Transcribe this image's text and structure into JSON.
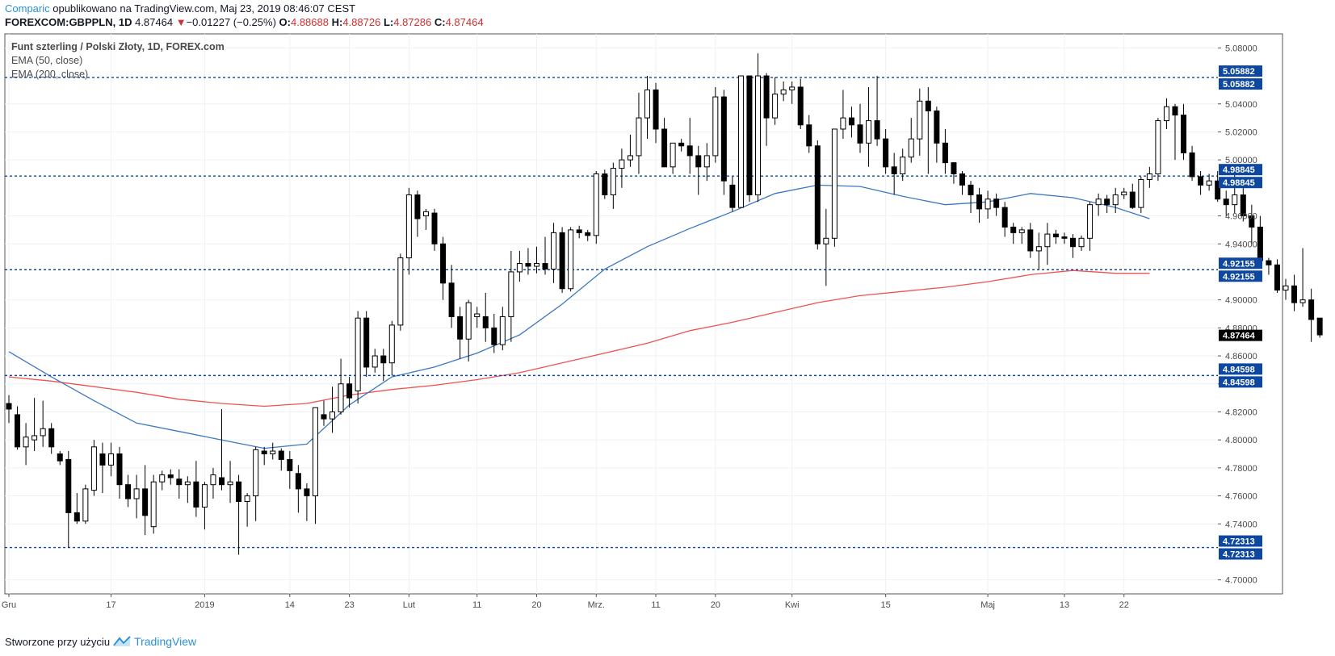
{
  "header": {
    "brand": "Comparic",
    "published": " opublikowano na TradingView.com, Maj 23, 2019 08:46:07 CEST",
    "symbol": "FOREXCOM:GBPPLN, 1D",
    "last": "4.87464",
    "arrow": "▼",
    "change": "−0.01227 (−0.25%)",
    "o_label": "O:",
    "o_value": "4.88688",
    "h_label": "H:",
    "h_value": "4.88726",
    "l_label": "L:",
    "l_value": "4.87286",
    "c_label": "C:",
    "c_value": "4.87464"
  },
  "legend": {
    "title": "Funt szterling / Polski Złoty, 1D, FOREX.com",
    "ema50": "EMA (50, close)",
    "ema200": "EMA (200, close)"
  },
  "footer": {
    "text": "Stworzone przy użyciu",
    "brand": "TradingView"
  },
  "colors": {
    "hline": "#0d47a1",
    "ema50": "#3b78c2",
    "ema200": "#ef5350",
    "bg": "#ffffff"
  },
  "chart_data": {
    "type": "candlestick",
    "title": "Funt szterling / Polski Złoty, 1D, FOREX.com",
    "ylim": [
      4.69,
      5.09
    ],
    "y_ticks": [
      "5.08000",
      "5.04000",
      "5.02000",
      "5.00000",
      "4.96000",
      "4.94000",
      "4.90000",
      "4.88000",
      "4.86000",
      "4.84000",
      "4.82000",
      "4.80000",
      "4.78000",
      "4.76000",
      "4.74000",
      "4.70000"
    ],
    "x_ticks": [
      {
        "label": "Gru",
        "i": 0
      },
      {
        "label": "17",
        "i": 12
      },
      {
        "label": "2019",
        "i": 23
      },
      {
        "label": "14",
        "i": 33
      },
      {
        "label": "23",
        "i": 40
      },
      {
        "label": "Lut",
        "i": 47
      },
      {
        "label": "11",
        "i": 55
      },
      {
        "label": "20",
        "i": 62
      },
      {
        "label": "Mrz.",
        "i": 69
      },
      {
        "label": "11",
        "i": 76
      },
      {
        "label": "20",
        "i": 83
      },
      {
        "label": "Kwi",
        "i": 92
      },
      {
        "label": "15",
        "i": 103
      },
      {
        "label": "Maj",
        "i": 115
      },
      {
        "label": "13",
        "i": 124
      },
      {
        "label": "22",
        "i": 131
      }
    ],
    "horizontal_levels": [
      {
        "label": "5.05882",
        "value": 5.05882
      },
      {
        "label": "4.98845",
        "value": 4.98845
      },
      {
        "label": "4.92155",
        "value": 4.92155
      },
      {
        "label": "4.84598",
        "value": 4.84598
      },
      {
        "label": "4.72313",
        "value": 4.72313
      }
    ],
    "last_price": {
      "label": "4.87464",
      "value": 4.87464
    },
    "candles": [
      [
        4.826,
        4.832,
        4.812,
        4.822
      ],
      [
        4.818,
        4.824,
        4.793,
        4.795
      ],
      [
        4.795,
        4.812,
        4.782,
        4.802
      ],
      [
        4.8,
        4.83,
        4.792,
        4.803
      ],
      [
        4.803,
        4.828,
        4.795,
        4.808
      ],
      [
        4.808,
        4.812,
        4.79,
        4.795
      ],
      [
        4.79,
        4.792,
        4.782,
        4.785
      ],
      [
        4.786,
        4.792,
        4.723,
        4.748
      ],
      [
        4.748,
        4.762,
        4.74,
        4.742
      ],
      [
        4.742,
        4.768,
        4.74,
        4.765
      ],
      [
        4.764,
        4.8,
        4.76,
        4.795
      ],
      [
        4.79,
        4.798,
        4.762,
        4.782
      ],
      [
        4.782,
        4.798,
        4.774,
        4.79
      ],
      [
        4.79,
        4.795,
        4.758,
        4.768
      ],
      [
        4.768,
        4.775,
        4.752,
        4.758
      ],
      [
        4.758,
        4.775,
        4.744,
        4.765
      ],
      [
        4.765,
        4.782,
        4.732,
        4.746
      ],
      [
        4.738,
        4.775,
        4.733,
        4.77
      ],
      [
        4.77,
        4.778,
        4.764,
        4.775
      ],
      [
        4.775,
        4.779,
        4.768,
        4.773
      ],
      [
        4.772,
        4.779,
        4.758,
        4.768
      ],
      [
        4.768,
        4.774,
        4.755,
        4.77
      ],
      [
        4.77,
        4.785,
        4.745,
        4.752
      ],
      [
        4.752,
        4.77,
        4.736,
        4.768
      ],
      [
        4.768,
        4.78,
        4.758,
        4.775
      ],
      [
        4.773,
        4.822,
        4.764,
        4.768
      ],
      [
        4.768,
        4.785,
        4.755,
        4.77
      ],
      [
        4.77,
        4.775,
        4.718,
        4.756
      ],
      [
        4.756,
        4.762,
        4.738,
        4.76
      ],
      [
        4.76,
        4.795,
        4.742,
        4.793
      ],
      [
        4.792,
        4.795,
        4.782,
        4.79
      ],
      [
        4.79,
        4.798,
        4.786,
        4.792
      ],
      [
        4.792,
        4.794,
        4.778,
        4.786
      ],
      [
        4.786,
        4.792,
        4.765,
        4.778
      ],
      [
        4.776,
        4.782,
        4.748,
        4.765
      ],
      [
        4.765,
        4.769,
        4.742,
        4.76
      ],
      [
        4.76,
        4.822,
        4.74,
        4.823
      ],
      [
        4.818,
        4.828,
        4.81,
        4.815
      ],
      [
        4.815,
        4.838,
        4.805,
        4.82
      ],
      [
        4.82,
        4.858,
        4.818,
        4.84
      ],
      [
        4.84,
        4.845,
        4.823,
        4.83
      ],
      [
        4.835,
        4.892,
        4.826,
        4.887
      ],
      [
        4.887,
        4.892,
        4.845,
        4.852
      ],
      [
        4.852,
        4.865,
        4.848,
        4.86
      ],
      [
        4.86,
        4.865,
        4.842,
        4.855
      ],
      [
        4.855,
        4.885,
        4.846,
        4.882
      ],
      [
        4.882,
        4.933,
        4.878,
        4.93
      ],
      [
        4.93,
        4.98,
        4.918,
        4.975
      ],
      [
        4.975,
        4.978,
        4.945,
        4.958
      ],
      [
        4.96,
        4.965,
        4.95,
        4.963
      ],
      [
        4.962,
        4.965,
        4.935,
        4.94
      ],
      [
        4.94,
        4.945,
        4.9,
        4.912
      ],
      [
        4.912,
        4.925,
        4.88,
        4.888
      ],
      [
        4.888,
        4.895,
        4.858,
        4.872
      ],
      [
        4.872,
        4.9,
        4.856,
        4.898
      ],
      [
        4.888,
        4.895,
        4.88,
        4.89
      ],
      [
        4.888,
        4.905,
        4.87,
        4.88
      ],
      [
        4.88,
        4.89,
        4.862,
        4.868
      ],
      [
        4.868,
        4.895,
        4.864,
        4.888
      ],
      [
        4.888,
        4.935,
        4.87,
        4.92
      ],
      [
        4.92,
        4.935,
        4.913,
        4.926
      ],
      [
        4.926,
        4.937,
        4.918,
        4.924
      ],
      [
        4.924,
        4.938,
        4.919,
        4.926
      ],
      [
        4.926,
        4.945,
        4.918,
        4.922
      ],
      [
        4.922,
        4.955,
        4.912,
        4.948
      ],
      [
        4.948,
        4.952,
        4.905,
        4.908
      ],
      [
        4.908,
        4.952,
        4.906,
        4.95
      ],
      [
        4.95,
        4.953,
        4.944,
        4.948
      ],
      [
        4.948,
        4.95,
        4.942,
        4.946
      ],
      [
        4.946,
        4.992,
        4.94,
        4.99
      ],
      [
        4.99,
        4.993,
        4.972,
        4.975
      ],
      [
        4.975,
        4.998,
        4.965,
        4.994
      ],
      [
        4.994,
        5.008,
        4.98,
        5.0
      ],
      [
        5.0,
        5.018,
        4.995,
        5.003
      ],
      [
        5.003,
        5.048,
        4.99,
        5.03
      ],
      [
        5.03,
        5.06,
        5.015,
        5.05
      ],
      [
        5.05,
        5.055,
        5.012,
        5.022
      ],
      [
        5.022,
        5.03,
        4.995,
        4.995
      ],
      [
        4.995,
        5.012,
        4.99,
        5.012
      ],
      [
        5.012,
        5.015,
        5.006,
        5.01
      ],
      [
        5.01,
        5.03,
        4.99,
        5.003
      ],
      [
        5.003,
        5.01,
        4.975,
        4.995
      ],
      [
        4.995,
        5.012,
        4.985,
        5.003
      ],
      [
        5.003,
        5.052,
        4.998,
        5.045
      ],
      [
        5.045,
        5.05,
        4.975,
        4.985
      ],
      [
        4.982,
        4.988,
        4.963,
        4.966
      ],
      [
        4.966,
        5.058,
        4.966,
        5.06
      ],
      [
        5.06,
        5.06,
        4.97,
        4.975
      ],
      [
        4.975,
        5.076,
        4.97,
        5.06
      ],
      [
        5.06,
        5.062,
        5.01,
        5.03
      ],
      [
        5.03,
        5.059,
        5.025,
        5.047
      ],
      [
        5.047,
        5.056,
        5.042,
        5.05
      ],
      [
        5.05,
        5.056,
        5.04,
        5.052
      ],
      [
        5.052,
        5.058,
        5.022,
        5.025
      ],
      [
        5.025,
        5.032,
        5.005,
        5.01
      ],
      [
        5.01,
        5.014,
        4.936,
        4.94
      ],
      [
        4.94,
        4.965,
        4.91,
        4.944
      ],
      [
        4.944,
        5.022,
        4.938,
        5.022
      ],
      [
        5.022,
        5.05,
        5.015,
        5.03
      ],
      [
        5.03,
        5.038,
        5.016,
        5.025
      ],
      [
        5.025,
        5.04,
        5.005,
        5.012
      ],
      [
        5.012,
        5.052,
        4.995,
        5.028
      ],
      [
        5.028,
        5.06,
        5.01,
        5.015
      ],
      [
        5.015,
        5.022,
        4.99,
        4.995
      ],
      [
        4.995,
        5.005,
        4.975,
        4.99
      ],
      [
        4.99,
        5.008,
        4.985,
        5.002
      ],
      [
        5.002,
        5.03,
        4.998,
        5.015
      ],
      [
        5.015,
        5.051,
        5.003,
        5.042
      ],
      [
        5.042,
        5.052,
        4.99,
        5.035
      ],
      [
        5.035,
        5.038,
        4.998,
        5.012
      ],
      [
        5.012,
        5.022,
        4.99,
        4.998
      ],
      [
        4.998,
        4.996,
        4.983,
        4.99
      ],
      [
        4.99,
        4.992,
        4.975,
        4.982
      ],
      [
        4.982,
        4.985,
        4.962,
        4.975
      ],
      [
        4.975,
        4.98,
        4.955,
        4.965
      ],
      [
        4.965,
        4.978,
        4.958,
        4.972
      ],
      [
        4.972,
        4.976,
        4.96,
        4.966
      ],
      [
        4.966,
        4.97,
        4.945,
        4.952
      ],
      [
        4.952,
        4.955,
        4.94,
        4.948
      ],
      [
        4.948,
        4.952,
        4.94,
        4.95
      ],
      [
        4.95,
        4.955,
        4.93,
        4.935
      ],
      [
        4.935,
        4.948,
        4.922,
        4.938
      ],
      [
        4.938,
        4.955,
        4.925,
        4.947
      ],
      [
        4.947,
        4.95,
        4.94,
        4.945
      ],
      [
        4.945,
        4.948,
        4.94,
        4.944
      ],
      [
        4.944,
        4.947,
        4.93,
        4.938
      ],
      [
        4.938,
        4.946,
        4.935,
        4.944
      ],
      [
        4.944,
        4.97,
        4.935,
        4.968
      ],
      [
        4.968,
        4.976,
        4.96,
        4.972
      ],
      [
        4.972,
        4.975,
        4.962,
        4.968
      ],
      [
        4.968,
        4.98,
        4.962,
        4.975
      ],
      [
        4.975,
        4.98,
        4.972,
        4.977
      ],
      [
        4.977,
        4.983,
        4.965,
        4.966
      ],
      [
        4.966,
        4.988,
        4.962,
        4.986
      ],
      [
        4.986,
        4.995,
        4.98,
        4.99
      ],
      [
        4.99,
        5.03,
        4.985,
        5.028
      ],
      [
        5.028,
        5.044,
        5.022,
        5.038
      ],
      [
        5.038,
        5.04,
        5.0,
        5.032
      ],
      [
        5.032,
        5.04,
        5.0,
        5.005
      ],
      [
        5.005,
        5.01,
        4.985,
        4.988
      ],
      [
        4.988,
        4.992,
        4.975,
        4.982
      ],
      [
        4.982,
        4.99,
        4.978,
        4.985
      ],
      [
        4.985,
        4.992,
        4.97,
        4.972
      ],
      [
        4.972,
        4.978,
        4.96,
        4.968
      ],
      [
        4.968,
        4.993,
        4.962,
        4.975
      ],
      [
        4.975,
        4.98,
        4.956,
        4.96
      ],
      [
        4.96,
        4.968,
        4.94,
        4.952
      ],
      [
        4.952,
        4.96,
        4.925,
        4.928
      ],
      [
        4.928,
        4.93,
        4.918,
        4.925
      ],
      [
        4.925,
        4.929,
        4.905,
        4.907
      ],
      [
        4.907,
        4.915,
        4.9,
        4.91
      ],
      [
        4.91,
        4.918,
        4.892,
        4.898
      ],
      [
        4.898,
        4.937,
        4.895,
        4.9
      ],
      [
        4.9,
        4.908,
        4.87,
        4.886
      ],
      [
        4.887,
        4.887,
        4.873,
        4.875
      ]
    ],
    "series": [
      {
        "name": "EMA (50, close)",
        "x": [
          0,
          5,
          10,
          15,
          20,
          25,
          30,
          35,
          40,
          45,
          50,
          55,
          60,
          65,
          70,
          75,
          80,
          85,
          90,
          95,
          100,
          105,
          110,
          115,
          120,
          125,
          130,
          134
        ],
        "values": [
          4.863,
          4.845,
          4.828,
          4.812,
          4.806,
          4.8,
          4.794,
          4.797,
          4.825,
          4.845,
          4.852,
          4.862,
          4.875,
          4.897,
          4.922,
          4.938,
          4.951,
          4.963,
          4.976,
          4.982,
          4.981,
          4.974,
          4.968,
          4.97,
          4.976,
          4.973,
          4.966,
          4.958
        ]
      },
      {
        "name": "EMA (200, close)",
        "x": [
          0,
          5,
          10,
          15,
          20,
          25,
          30,
          35,
          40,
          45,
          50,
          55,
          60,
          65,
          70,
          75,
          80,
          85,
          90,
          95,
          100,
          105,
          110,
          115,
          120,
          125,
          130,
          134
        ],
        "values": [
          4.845,
          4.842,
          4.838,
          4.834,
          4.829,
          4.826,
          4.824,
          4.826,
          4.832,
          4.836,
          4.839,
          4.843,
          4.848,
          4.855,
          4.862,
          4.869,
          4.878,
          4.884,
          4.891,
          4.898,
          4.903,
          4.906,
          4.909,
          4.913,
          4.918,
          4.921,
          4.919,
          4.919
        ]
      }
    ]
  }
}
